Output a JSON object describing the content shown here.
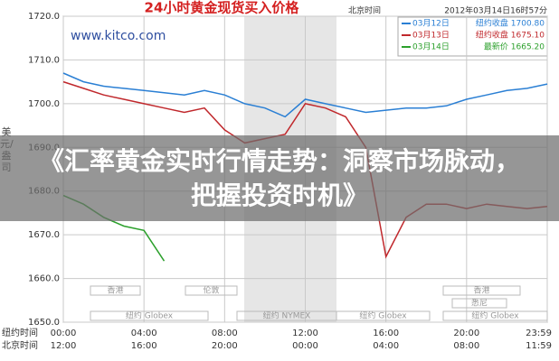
{
  "chart_data": {
    "type": "line",
    "title": "24小时黄金现货买入价格",
    "source": "www.kitco.com",
    "time_zone": "北京时间",
    "timestamp": "2012年03月14日16时57分",
    "y_label": "美元/盎司",
    "overlay_title": "《汇率黄金实时行情走势：洞察市场脉动，把握投资时机》",
    "x": [
      0,
      1,
      2,
      3,
      4,
      5,
      6,
      7,
      8,
      9,
      10,
      11,
      12,
      13,
      14,
      15,
      16,
      17,
      18,
      19,
      20,
      21,
      22,
      23,
      24
    ],
    "xlim": [
      0,
      24
    ],
    "time_rows": [
      {
        "name": "纽约时间",
        "ticks": [
          {
            "value": 0,
            "label": "00:00"
          },
          {
            "value": 4,
            "label": "04:00"
          },
          {
            "value": 8,
            "label": "08:00"
          },
          {
            "value": 12,
            "label": "12:00"
          },
          {
            "value": 16,
            "label": "16:00"
          },
          {
            "value": 20,
            "label": "20:00"
          },
          {
            "value": 24,
            "label": "23:59"
          }
        ]
      },
      {
        "name": "北京时间",
        "ticks": [
          {
            "value": 0,
            "label": "12:00"
          },
          {
            "value": 4,
            "label": "16:00"
          },
          {
            "value": 8,
            "label": "20:00"
          },
          {
            "value": 12,
            "label": "00:00"
          },
          {
            "value": 16,
            "label": "04:00"
          },
          {
            "value": 20,
            "label": "08:00"
          },
          {
            "value": 24,
            "label": "11:59"
          }
        ]
      }
    ],
    "sessions": [
      "香港",
      "伦敦",
      "纽约 Globex",
      "纽约 NYMEX",
      "纽约 Globex",
      "香港",
      "悉尼",
      "纽约 Globex"
    ],
    "ylim": [
      1650,
      1720
    ],
    "yticks": [
      {
        "value": 1650,
        "label": "1650.0"
      },
      {
        "value": 1660,
        "label": "1660.0"
      },
      {
        "value": 1670,
        "label": "1670.0"
      },
      {
        "value": 1680,
        "label": "1680.0"
      },
      {
        "value": 1690,
        "label": "1690.0"
      },
      {
        "value": 1700,
        "label": "1700.0"
      },
      {
        "value": 1710,
        "label": "1710.0"
      },
      {
        "value": 1720,
        "label": "1720.0"
      }
    ],
    "grid": true,
    "series": [
      {
        "name": "03月12日",
        "legend_label": "纽约收盘 1700.80",
        "color": "#2a7fd4",
        "values": [
          1707,
          1705,
          1704,
          1703.5,
          1703,
          1702.5,
          1702,
          1703,
          1702,
          1700,
          1699,
          1697,
          1701,
          1700,
          1699,
          1698,
          1698.5,
          1699,
          1699,
          1699.5,
          1701,
          1702,
          1703,
          1703.5,
          1704.5
        ]
      },
      {
        "name": "03月13日",
        "legend_label": "纽约收盘 1675.10",
        "color": "#c0282c",
        "values": [
          1705,
          1703.5,
          1702,
          1701,
          1700,
          1699,
          1698,
          1699,
          1694,
          1691,
          1692,
          1693,
          1700,
          1699,
          1697,
          1690,
          1665,
          1674,
          1677,
          1677,
          1676,
          1677,
          1676.5,
          1676,
          1676.5
        ]
      },
      {
        "name": "03月14日",
        "legend_label": "最新价 1665.20",
        "color": "#2ca02c",
        "values": [
          1679,
          1677,
          1674,
          1672,
          1671,
          1664,
          null,
          null,
          null,
          null,
          null,
          null,
          null,
          null,
          null,
          null,
          null,
          null,
          null,
          null,
          null,
          null,
          null,
          null,
          null
        ]
      }
    ]
  }
}
